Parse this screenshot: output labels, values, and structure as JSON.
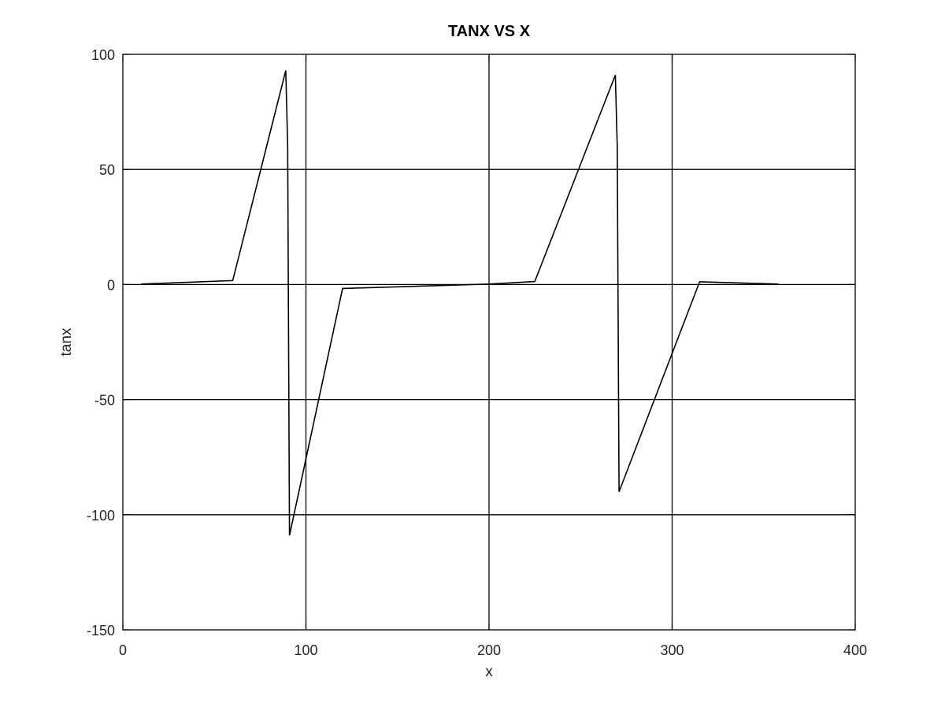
{
  "chart_data": {
    "type": "line",
    "title": "TANX VS X",
    "xlabel": "x",
    "ylabel": "tanx",
    "xlim": [
      0,
      400
    ],
    "ylim": [
      -150,
      100
    ],
    "xticks": [
      0,
      100,
      200,
      300,
      400
    ],
    "yticks": [
      -150,
      -100,
      -50,
      0,
      50,
      100
    ],
    "xtick_labels": [
      "0",
      "100",
      "200",
      "300",
      "400"
    ],
    "ytick_labels": [
      "-150",
      "-100",
      "-50",
      "0",
      "50",
      "100"
    ],
    "grid": true,
    "line_color": "#000000",
    "grid_color": "#000000",
    "series": [
      {
        "x": [
          10,
          60,
          89,
          90,
          91,
          120,
          200,
          225,
          269,
          270,
          271,
          315,
          358
        ],
        "y": [
          0.2,
          1.7,
          93,
          60,
          -109,
          -1.7,
          0.2,
          1.3,
          91,
          60,
          -90,
          1.2,
          0.2
        ]
      }
    ]
  }
}
